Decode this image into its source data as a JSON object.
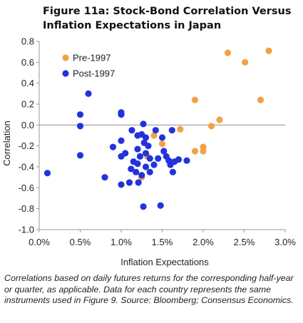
{
  "chart_data": {
    "type": "scatter",
    "title": "Figure 11a: Stock-Bond Correlation Versus Inflation Expectations in Japan",
    "xlabel": "Inflation Expectations",
    "ylabel": "Correlation",
    "xlim": [
      0,
      0.03
    ],
    "ylim": [
      -1.0,
      0.8
    ],
    "xticks": [
      0,
      0.005,
      0.01,
      0.015,
      0.02,
      0.025,
      0.03
    ],
    "xtick_labels": [
      "0.0%",
      "0.5%",
      "1.0%",
      "1.5%",
      "2.0%",
      "2.5%",
      "3.0%"
    ],
    "yticks": [
      0.8,
      0.6,
      0.4,
      0.2,
      0.0,
      -0.2,
      -0.4,
      -0.6,
      -0.8,
      -1.0
    ],
    "ytick_labels": [
      "0.8",
      "0.6",
      "0.4",
      "0.2",
      "0.0",
      "-0.2",
      "-0.4",
      "-0.6",
      "-0.8",
      "-1.0"
    ],
    "grid": false,
    "zero_line": true,
    "legend_position": "top-left",
    "series": [
      {
        "name": "Pre-1997",
        "color": "#f0a248",
        "points": [
          [
            0.028,
            0.71
          ],
          [
            0.023,
            0.69
          ],
          [
            0.0251,
            0.6
          ],
          [
            0.027,
            0.24
          ],
          [
            0.019,
            0.24
          ],
          [
            0.022,
            0.05
          ],
          [
            0.021,
            -0.01
          ],
          [
            0.0172,
            -0.04
          ],
          [
            0.02,
            -0.21
          ],
          [
            0.019,
            -0.25
          ],
          [
            0.02,
            -0.25
          ],
          [
            0.015,
            -0.18
          ],
          [
            0.014,
            -0.1
          ],
          [
            0.0132,
            -0.3
          ],
          [
            0.0125,
            -0.5
          ]
        ]
      },
      {
        "name": "Post-1997",
        "color": "#2233dd",
        "points": [
          [
            0.001,
            -0.46
          ],
          [
            0.006,
            0.3
          ],
          [
            0.005,
            0.1
          ],
          [
            0.005,
            -0.01
          ],
          [
            0.005,
            -0.29
          ],
          [
            0.008,
            -0.5
          ],
          [
            0.009,
            -0.21
          ],
          [
            0.01,
            -0.57
          ],
          [
            0.01,
            -0.3
          ],
          [
            0.01,
            0.12
          ],
          [
            0.01,
            0.1
          ],
          [
            0.01,
            -0.15
          ],
          [
            0.0105,
            -0.27
          ],
          [
            0.011,
            -0.55
          ],
          [
            0.0112,
            -0.42
          ],
          [
            0.0113,
            -0.05
          ],
          [
            0.0115,
            -0.35
          ],
          [
            0.0118,
            -0.45
          ],
          [
            0.012,
            -0.1
          ],
          [
            0.012,
            -0.23
          ],
          [
            0.012,
            -0.37
          ],
          [
            0.0121,
            -0.55
          ],
          [
            0.0123,
            -0.3
          ],
          [
            0.0125,
            -0.09
          ],
          [
            0.0125,
            -0.48
          ],
          [
            0.0127,
            0.01
          ],
          [
            0.0127,
            -0.78
          ],
          [
            0.0128,
            -0.17
          ],
          [
            0.013,
            -0.12
          ],
          [
            0.013,
            -0.27
          ],
          [
            0.013,
            -0.4
          ],
          [
            0.0133,
            -0.2
          ],
          [
            0.0135,
            -0.32
          ],
          [
            0.0135,
            -0.45
          ],
          [
            0.014,
            -0.38
          ],
          [
            0.0142,
            -0.05
          ],
          [
            0.0145,
            -0.32
          ],
          [
            0.0148,
            -0.77
          ],
          [
            0.015,
            -0.12
          ],
          [
            0.0152,
            -0.25
          ],
          [
            0.0155,
            -0.3
          ],
          [
            0.0158,
            -0.34
          ],
          [
            0.016,
            -0.38
          ],
          [
            0.0162,
            -0.05
          ],
          [
            0.0163,
            -0.45
          ],
          [
            0.0165,
            -0.35
          ],
          [
            0.017,
            -0.33
          ],
          [
            0.018,
            -0.34
          ]
        ]
      }
    ]
  },
  "caption": "Correlations based on daily futures returns for the corresponding half-year or quarter, as applicable. Data for each country represents the same instruments used in Figure 9. Source: Bloomberg; Consensus Economics."
}
